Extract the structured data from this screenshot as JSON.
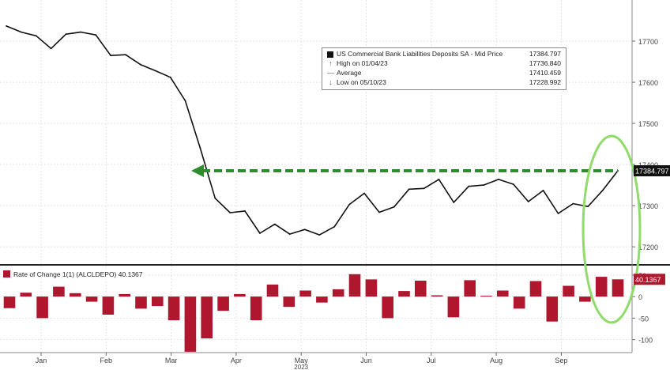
{
  "chart_data": [
    {
      "type": "line",
      "legend_placement": "top-right",
      "series": [
        {
          "name": "US Commercial Bank Liabilities Deposits SA - Mid Price",
          "last_value": "17384.797",
          "color": "#111111",
          "values": [
            17736.8,
            17722,
            17713,
            17682,
            17717,
            17722,
            17715,
            17665,
            17667,
            17643,
            17628,
            17612,
            17555,
            17440,
            17318,
            17283,
            17287,
            17233,
            17255,
            17231,
            17242,
            17229,
            17249,
            17303,
            17330,
            17284,
            17297,
            17340,
            17342,
            17364,
            17308,
            17347,
            17350,
            17364,
            17352,
            17310,
            17337,
            17281,
            17305,
            17298,
            17338,
            17384.8
          ]
        }
      ],
      "stats": [
        {
          "label": "High on 01/04/23",
          "value": "17736.840"
        },
        {
          "label": "Average",
          "value": "17410.459"
        },
        {
          "label": "Low on 05/10/23",
          "value": "17228.992"
        }
      ],
      "reference_value": 17384.8,
      "reference_color": "#2e8b2e",
      "highlight_color": "#8fdc6a",
      "ylim": [
        17160,
        17800
      ],
      "yticks": [
        "17700",
        "17600",
        "17500",
        "17400",
        "17300",
        "17200"
      ],
      "grid": true
    },
    {
      "type": "bar",
      "series": [
        {
          "name": "Rate of Change 1(1) (ALCLDEPO)",
          "last_value": "40.1367",
          "color": "#b0162d",
          "values": [
            -27,
            9,
            -50,
            23,
            8,
            -12,
            -42,
            6,
            -28,
            -22,
            -55,
            -128,
            -97,
            -33,
            6,
            -55,
            28,
            -24,
            14,
            -14,
            17,
            52,
            40,
            -50,
            13,
            37,
            3,
            -48,
            38,
            2,
            14,
            -28,
            36,
            -58,
            25,
            -12,
            46,
            40.1
          ]
        }
      ],
      "ylim": [
        -130,
        70
      ],
      "yticks": [
        "50",
        "0",
        "-50",
        "-100"
      ],
      "grid": true
    }
  ],
  "x_axis": {
    "months": [
      "Jan",
      "Feb",
      "Mar",
      "Apr",
      "May",
      "Jun",
      "Jul",
      "Aug",
      "Sep"
    ],
    "year": "2023"
  }
}
